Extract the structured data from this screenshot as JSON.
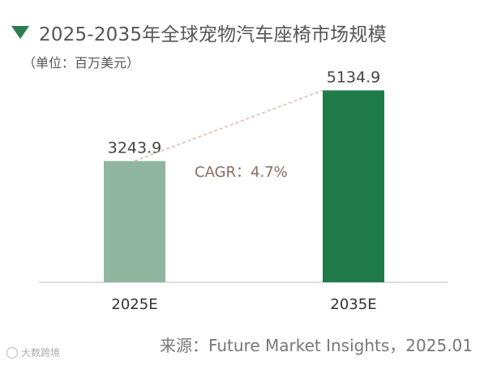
{
  "header": {
    "title": "2025-2035年全球宠物汽车座椅市场规模",
    "subtitle": "（单位：百万美元）"
  },
  "source": "来源：Future Market Insights，2025.01",
  "watermark": "大数跨境",
  "colors": {
    "accent": "#2e7d4f",
    "bar_2025": "#8fb5a0",
    "bar_2035": "#1f7a4a",
    "cagr_text": "#8a6d62",
    "trend_line": "#d9b9ad"
  },
  "chart_data": {
    "type": "bar",
    "title": "2025-2035年全球宠物汽车座椅市场规模",
    "subtitle": "（单位：百万美元）",
    "categories": [
      "2025E",
      "2035E"
    ],
    "values": [
      3243.9,
      5134.9
    ],
    "value_labels": [
      "3243.9",
      "5134.9"
    ],
    "annotation": "CAGR：4.7%",
    "ylim": [
      0,
      5600
    ],
    "grid": false,
    "legend": "none"
  }
}
